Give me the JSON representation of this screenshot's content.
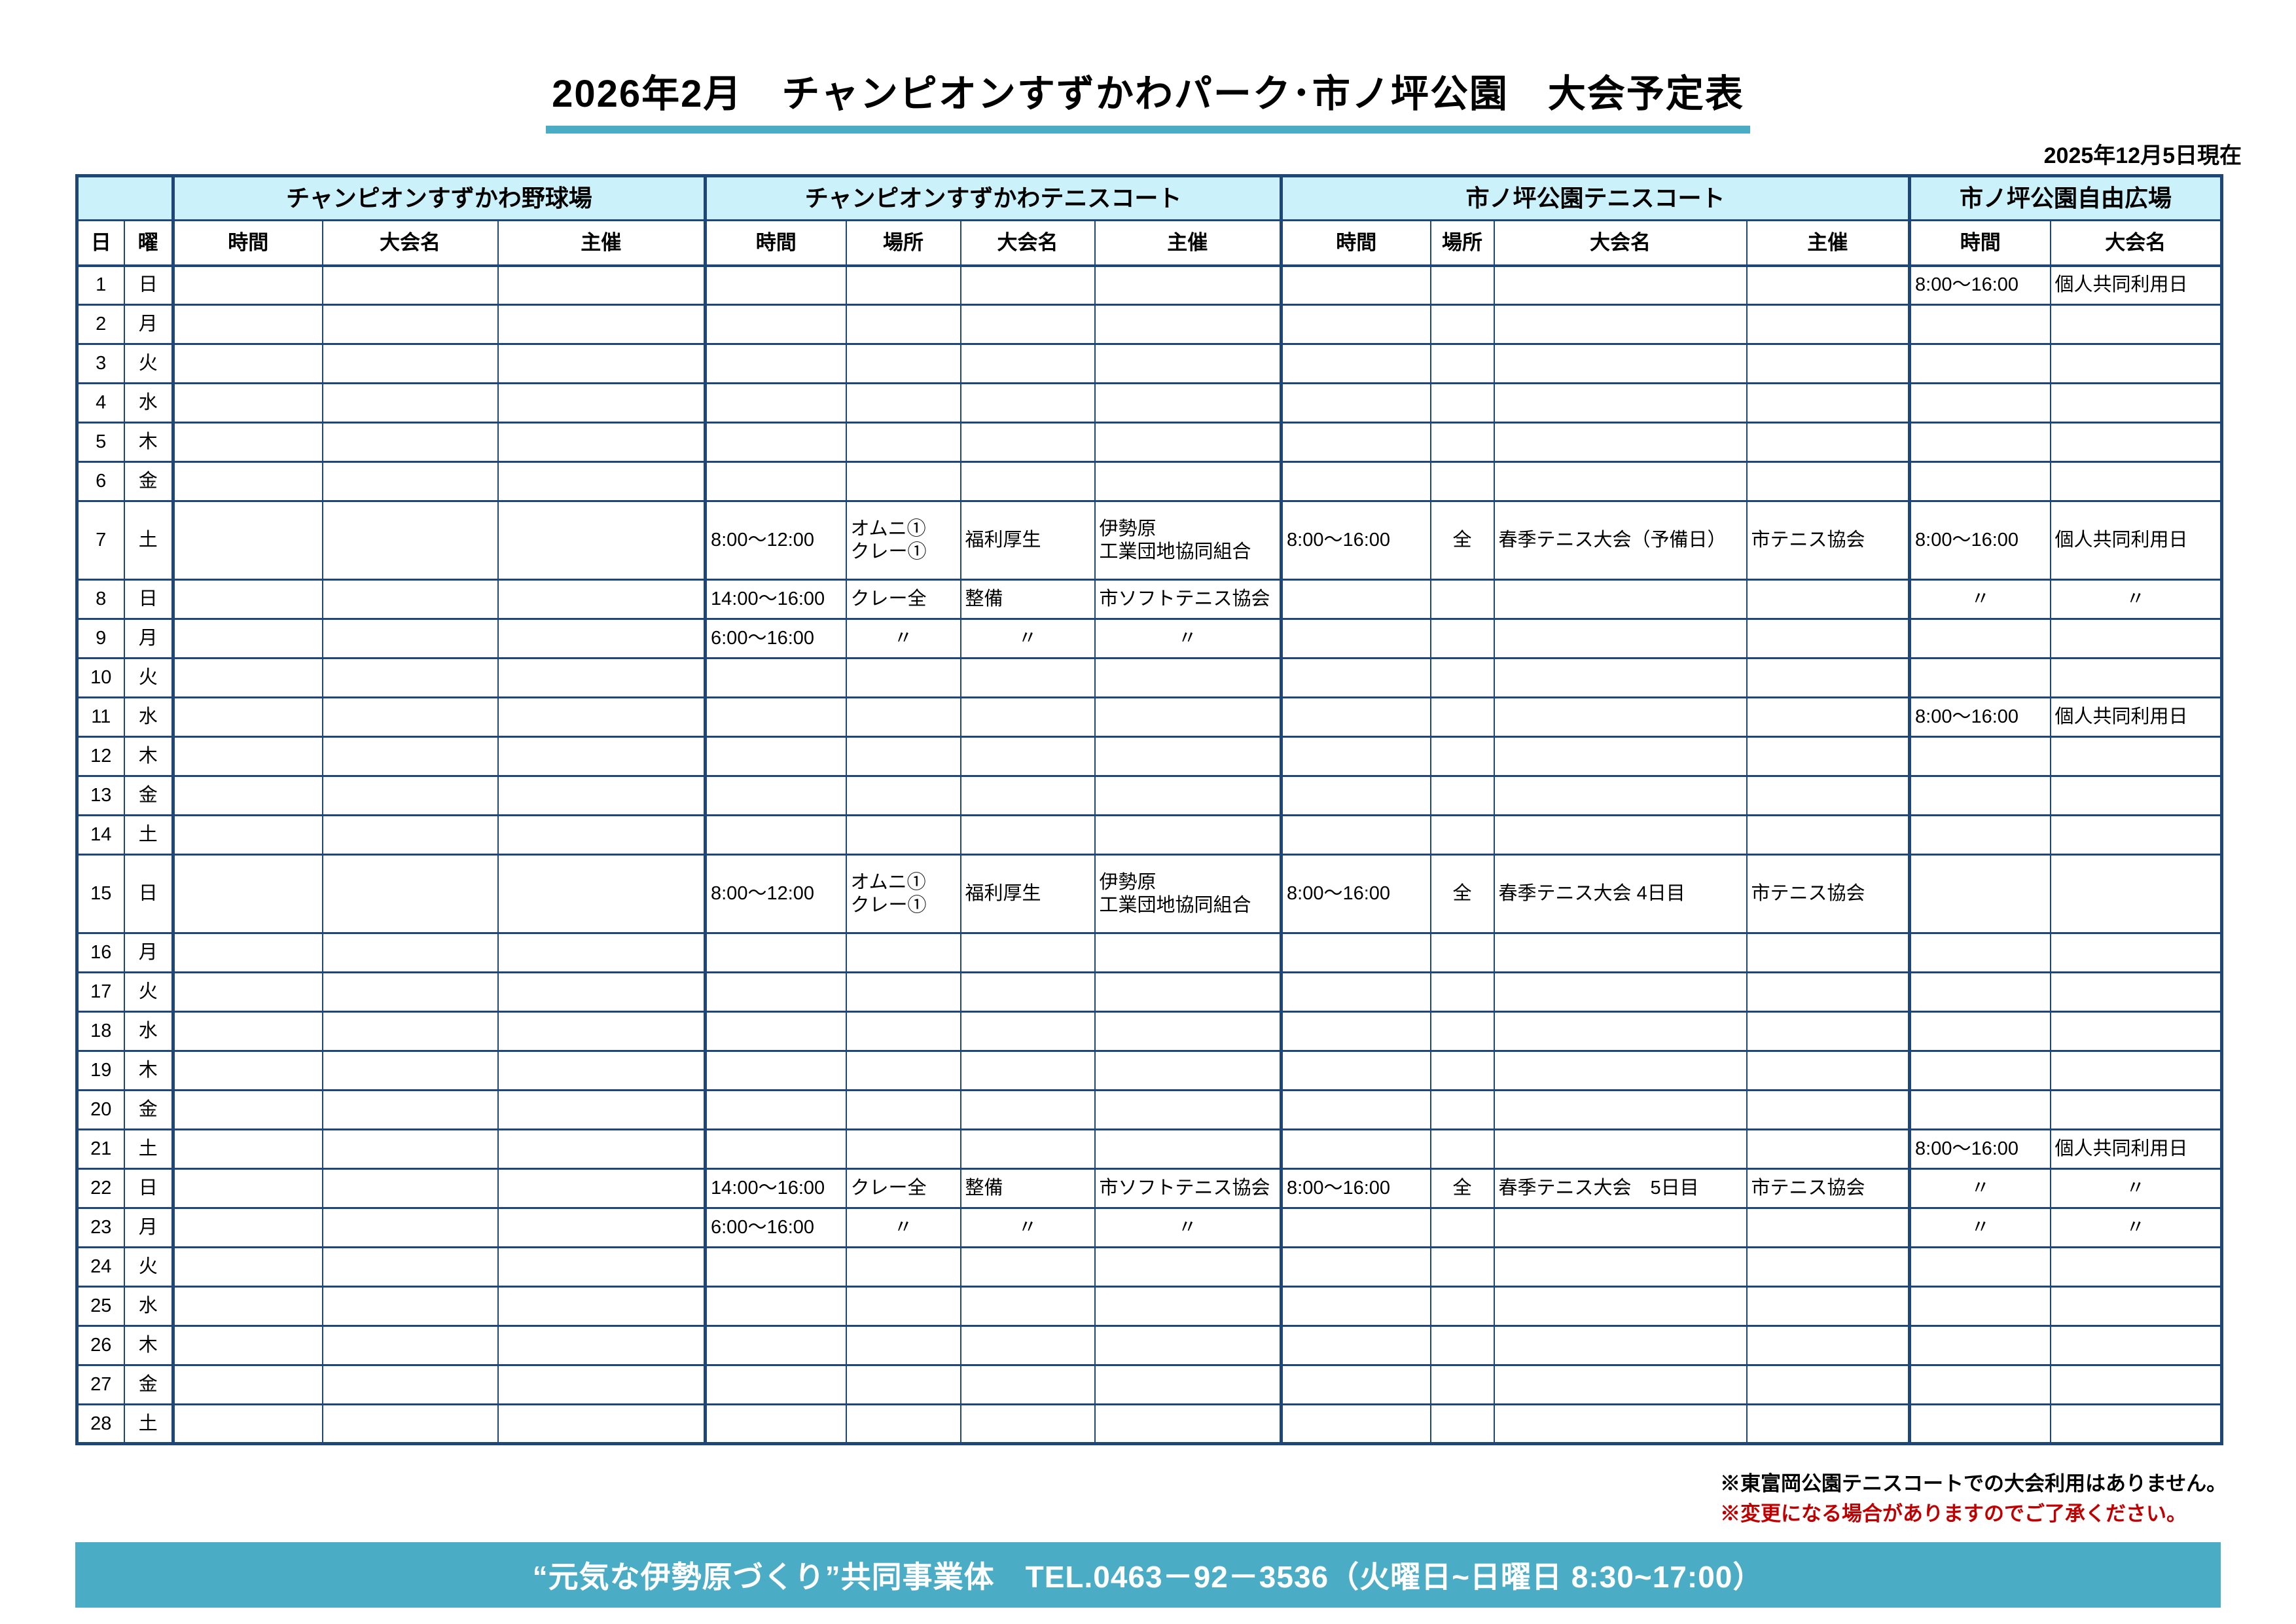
{
  "title": "2026年2月　チャンピオンすずかわパーク･市ノ坪公園　大会予定表",
  "as_of": "2025年12月5日現在",
  "notes": [
    "※東富岡公園テニスコートでの大会利用はありません。",
    "※変更になる場合がありますのでご了承ください。"
  ],
  "footer_bar": "“元気な伊勢原づくり”共同事業体　TEL.0463－92－3536（火曜日~日曜日 8:30~17:00）",
  "colors": {
    "border_navy": "#1e4679",
    "header_cyan": "#cbf2fa",
    "accent_teal": "#4bacc6",
    "note_red": "#c00000"
  },
  "table": {
    "corner": [
      "日",
      "曜"
    ],
    "groups": [
      {
        "label": "チャンピオンすずかわ野球場",
        "columns": [
          "時間",
          "大会名",
          "主催"
        ]
      },
      {
        "label": "チャンピオンすずかわテニスコート",
        "columns": [
          "時間",
          "場所",
          "大会名",
          "主催"
        ]
      },
      {
        "label": "市ノ坪公園テニスコート",
        "columns": [
          "時間",
          "場所",
          "大会名",
          "主催"
        ]
      },
      {
        "label": "市ノ坪公園自由広場",
        "columns": [
          "時間",
          "大会名"
        ]
      }
    ],
    "rows": [
      {
        "day": 1,
        "weekday": "日",
        "cells": [
          "",
          "",
          "",
          "",
          "",
          "",
          "",
          "",
          "",
          "",
          "",
          "8:00～16:00",
          "個人共同利用日"
        ]
      },
      {
        "day": 2,
        "weekday": "月",
        "cells": [
          "",
          "",
          "",
          "",
          "",
          "",
          "",
          "",
          "",
          "",
          "",
          "",
          ""
        ]
      },
      {
        "day": 3,
        "weekday": "火",
        "cells": [
          "",
          "",
          "",
          "",
          "",
          "",
          "",
          "",
          "",
          "",
          "",
          "",
          ""
        ]
      },
      {
        "day": 4,
        "weekday": "水",
        "cells": [
          "",
          "",
          "",
          "",
          "",
          "",
          "",
          "",
          "",
          "",
          "",
          "",
          ""
        ]
      },
      {
        "day": 5,
        "weekday": "木",
        "cells": [
          "",
          "",
          "",
          "",
          "",
          "",
          "",
          "",
          "",
          "",
          "",
          "",
          ""
        ]
      },
      {
        "day": 6,
        "weekday": "金",
        "cells": [
          "",
          "",
          "",
          "",
          "",
          "",
          "",
          "",
          "",
          "",
          "",
          "",
          ""
        ]
      },
      {
        "day": 7,
        "weekday": "土",
        "cells": [
          "",
          "",
          "",
          "8:00～12:00",
          "オムニ①\nクレー①",
          "福利厚生",
          "伊勢原\n工業団地協同組合",
          "8:00～16:00",
          "全",
          "春季テニス大会（予備日）",
          "市テニス協会",
          "8:00～16:00",
          "個人共同利用日"
        ]
      },
      {
        "day": 8,
        "weekday": "日",
        "cells": [
          "",
          "",
          "",
          "14:00～16:00",
          "クレー全",
          "整備",
          "市ソフトテニス協会",
          "",
          "",
          "",
          "",
          "〃",
          "〃"
        ]
      },
      {
        "day": 9,
        "weekday": "月",
        "cells": [
          "",
          "",
          "",
          "6:00～16:00",
          "〃",
          "〃",
          "〃",
          "",
          "",
          "",
          "",
          "",
          ""
        ]
      },
      {
        "day": 10,
        "weekday": "火",
        "cells": [
          "",
          "",
          "",
          "",
          "",
          "",
          "",
          "",
          "",
          "",
          "",
          "",
          ""
        ]
      },
      {
        "day": 11,
        "weekday": "水",
        "cells": [
          "",
          "",
          "",
          "",
          "",
          "",
          "",
          "",
          "",
          "",
          "",
          "8:00～16:00",
          "個人共同利用日"
        ]
      },
      {
        "day": 12,
        "weekday": "木",
        "cells": [
          "",
          "",
          "",
          "",
          "",
          "",
          "",
          "",
          "",
          "",
          "",
          "",
          ""
        ]
      },
      {
        "day": 13,
        "weekday": "金",
        "cells": [
          "",
          "",
          "",
          "",
          "",
          "",
          "",
          "",
          "",
          "",
          "",
          "",
          ""
        ]
      },
      {
        "day": 14,
        "weekday": "土",
        "cells": [
          "",
          "",
          "",
          "",
          "",
          "",
          "",
          "",
          "",
          "",
          "",
          "",
          ""
        ]
      },
      {
        "day": 15,
        "weekday": "日",
        "cells": [
          "",
          "",
          "",
          "8:00～12:00",
          "オムニ①\nクレー①",
          "福利厚生",
          "伊勢原\n工業団地協同組合",
          "8:00～16:00",
          "全",
          "春季テニス大会 4日目",
          "市テニス協会",
          "",
          ""
        ]
      },
      {
        "day": 16,
        "weekday": "月",
        "cells": [
          "",
          "",
          "",
          "",
          "",
          "",
          "",
          "",
          "",
          "",
          "",
          "",
          ""
        ]
      },
      {
        "day": 17,
        "weekday": "火",
        "cells": [
          "",
          "",
          "",
          "",
          "",
          "",
          "",
          "",
          "",
          "",
          "",
          "",
          ""
        ]
      },
      {
        "day": 18,
        "weekday": "水",
        "cells": [
          "",
          "",
          "",
          "",
          "",
          "",
          "",
          "",
          "",
          "",
          "",
          "",
          ""
        ]
      },
      {
        "day": 19,
        "weekday": "木",
        "cells": [
          "",
          "",
          "",
          "",
          "",
          "",
          "",
          "",
          "",
          "",
          "",
          "",
          ""
        ]
      },
      {
        "day": 20,
        "weekday": "金",
        "cells": [
          "",
          "",
          "",
          "",
          "",
          "",
          "",
          "",
          "",
          "",
          "",
          "",
          ""
        ]
      },
      {
        "day": 21,
        "weekday": "土",
        "cells": [
          "",
          "",
          "",
          "",
          "",
          "",
          "",
          "",
          "",
          "",
          "",
          "8:00～16:00",
          "個人共同利用日"
        ]
      },
      {
        "day": 22,
        "weekday": "日",
        "cells": [
          "",
          "",
          "",
          "14:00～16:00",
          "クレー全",
          "整備",
          "市ソフトテニス協会",
          "8:00～16:00",
          "全",
          "春季テニス大会　5日目",
          "市テニス協会",
          "〃",
          "〃"
        ]
      },
      {
        "day": 23,
        "weekday": "月",
        "cells": [
          "",
          "",
          "",
          "6:00～16:00",
          "〃",
          "〃",
          "〃",
          "",
          "",
          "",
          "",
          "〃",
          "〃"
        ]
      },
      {
        "day": 24,
        "weekday": "火",
        "cells": [
          "",
          "",
          "",
          "",
          "",
          "",
          "",
          "",
          "",
          "",
          "",
          "",
          ""
        ]
      },
      {
        "day": 25,
        "weekday": "水",
        "cells": [
          "",
          "",
          "",
          "",
          "",
          "",
          "",
          "",
          "",
          "",
          "",
          "",
          ""
        ]
      },
      {
        "day": 26,
        "weekday": "木",
        "cells": [
          "",
          "",
          "",
          "",
          "",
          "",
          "",
          "",
          "",
          "",
          "",
          "",
          ""
        ]
      },
      {
        "day": 27,
        "weekday": "金",
        "cells": [
          "",
          "",
          "",
          "",
          "",
          "",
          "",
          "",
          "",
          "",
          "",
          "",
          ""
        ]
      },
      {
        "day": 28,
        "weekday": "土",
        "cells": [
          "",
          "",
          "",
          "",
          "",
          "",
          "",
          "",
          "",
          "",
          "",
          "",
          ""
        ]
      }
    ]
  }
}
